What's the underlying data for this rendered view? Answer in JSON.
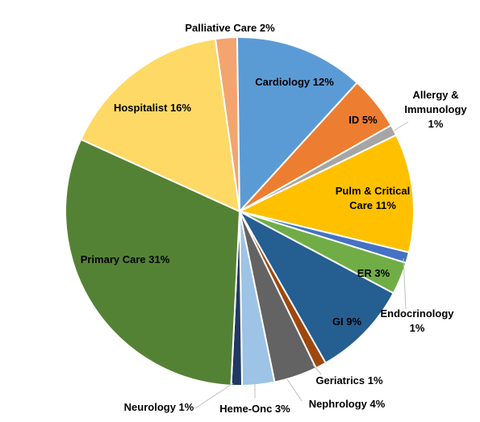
{
  "chart_data": {
    "type": "pie",
    "title": "",
    "start_angle_deg": -8,
    "direction": "clockwise",
    "slices": [
      {
        "name": "Palliative Care",
        "pct_label": "2%",
        "value": 2,
        "color": "#F4A46F"
      },
      {
        "name": "Cardiology",
        "pct_label": "12%",
        "value": 12,
        "color": "#5B9BD5"
      },
      {
        "name": "ID",
        "pct_label": "5%",
        "value": 5,
        "color": "#ED7D31"
      },
      {
        "name": "Allergy & Immunology",
        "pct_label": "1%",
        "value": 1,
        "color": "#A5A5A5"
      },
      {
        "name": "Pulm & Critical Care",
        "pct_label": "11%",
        "value": 11,
        "color": "#FFC000"
      },
      {
        "name": "Endocrinology",
        "pct_label": "1%",
        "value": 1,
        "color": "#4472C4"
      },
      {
        "name": "ER",
        "pct_label": "3%",
        "value": 3,
        "color": "#70AD47"
      },
      {
        "name": "GI",
        "pct_label": "9%",
        "value": 9,
        "color": "#255E91"
      },
      {
        "name": "Geriatrics",
        "pct_label": "1%",
        "value": 1,
        "color": "#9E480E"
      },
      {
        "name": "Nephrology",
        "pct_label": "4%",
        "value": 4,
        "color": "#636363"
      },
      {
        "name": "Heme-Onc",
        "pct_label": "3%",
        "value": 3,
        "color": "#9DC3E6"
      },
      {
        "name": "Neurology",
        "pct_label": "1%",
        "value": 1,
        "color": "#203864"
      },
      {
        "name": "Primary Care",
        "pct_label": "31%",
        "value": 31,
        "color": "#548235"
      },
      {
        "name": "Hospitalist",
        "pct_label": "16%",
        "value": 16,
        "color": "#FFD966"
      }
    ]
  }
}
